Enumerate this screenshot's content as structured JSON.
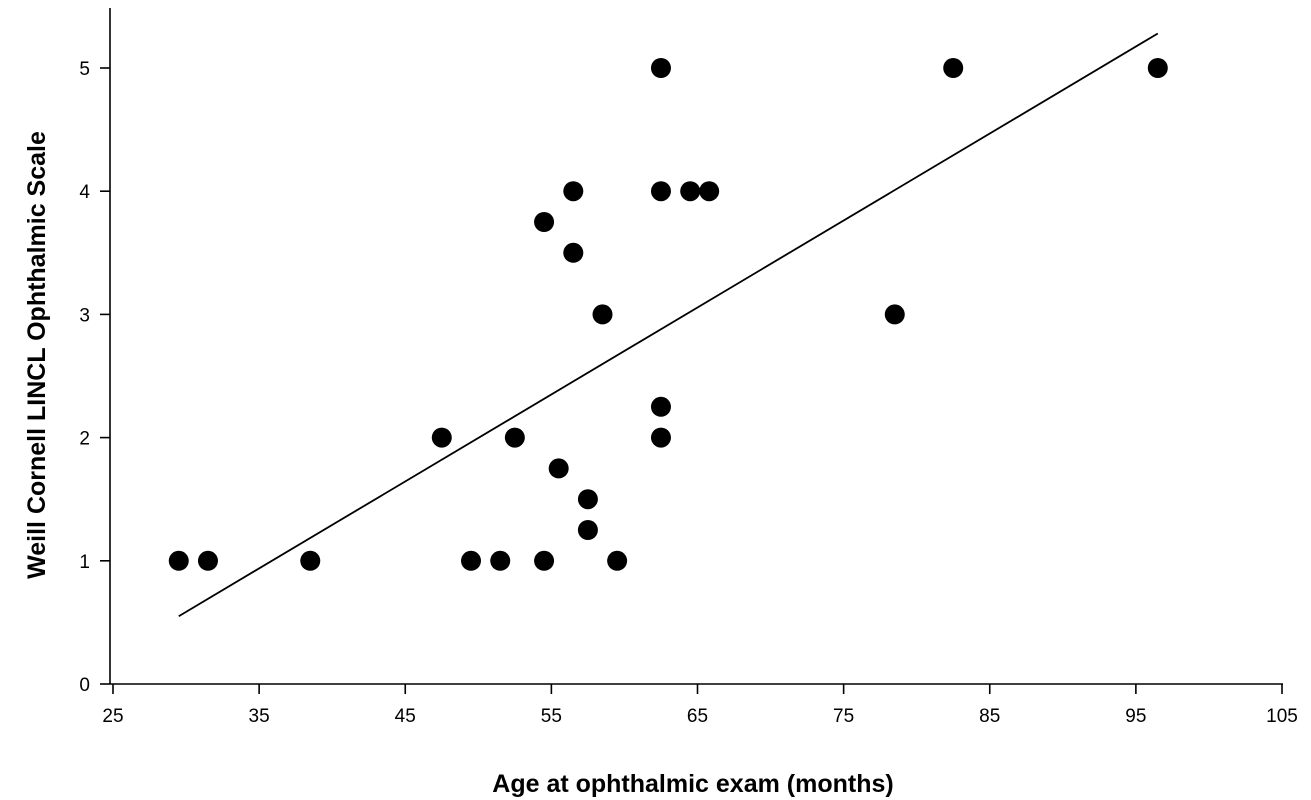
{
  "chart_data": {
    "type": "scatter",
    "xlabel": "Age at ophthalmic exam (months)",
    "ylabel": "Weill Cornell LINCL Ophthalmic Scale",
    "xlim": [
      25,
      105
    ],
    "ylim": [
      0,
      5.5
    ],
    "x_ticks": [
      "25",
      "35",
      "45",
      "55",
      "65",
      "75",
      "85",
      "95",
      "105"
    ],
    "y_ticks": [
      "0",
      "1",
      "2",
      "3",
      "4",
      "5"
    ],
    "grid": false,
    "legend": "none",
    "points": [
      {
        "x": 29.5,
        "y": 1
      },
      {
        "x": 31.5,
        "y": 1
      },
      {
        "x": 38.5,
        "y": 1
      },
      {
        "x": 47.5,
        "y": 2
      },
      {
        "x": 49.5,
        "y": 1
      },
      {
        "x": 51.5,
        "y": 1
      },
      {
        "x": 52.5,
        "y": 2
      },
      {
        "x": 54.5,
        "y": 1
      },
      {
        "x": 54.5,
        "y": 3.75
      },
      {
        "x": 55.5,
        "y": 1.75
      },
      {
        "x": 56.5,
        "y": 4
      },
      {
        "x": 56.5,
        "y": 3.5
      },
      {
        "x": 57.5,
        "y": 1.5
      },
      {
        "x": 57.5,
        "y": 1.25
      },
      {
        "x": 58.5,
        "y": 3
      },
      {
        "x": 59.5,
        "y": 1
      },
      {
        "x": 62.5,
        "y": 5
      },
      {
        "x": 62.5,
        "y": 4
      },
      {
        "x": 62.5,
        "y": 2.25
      },
      {
        "x": 62.5,
        "y": 2
      },
      {
        "x": 64.5,
        "y": 4
      },
      {
        "x": 65.8,
        "y": 4
      },
      {
        "x": 78.5,
        "y": 3
      },
      {
        "x": 82.5,
        "y": 5
      },
      {
        "x": 96.5,
        "y": 5
      }
    ],
    "fit_line": {
      "x1": 29.5,
      "y1": 0.55,
      "x2": 96.5,
      "y2": 5.28
    }
  }
}
